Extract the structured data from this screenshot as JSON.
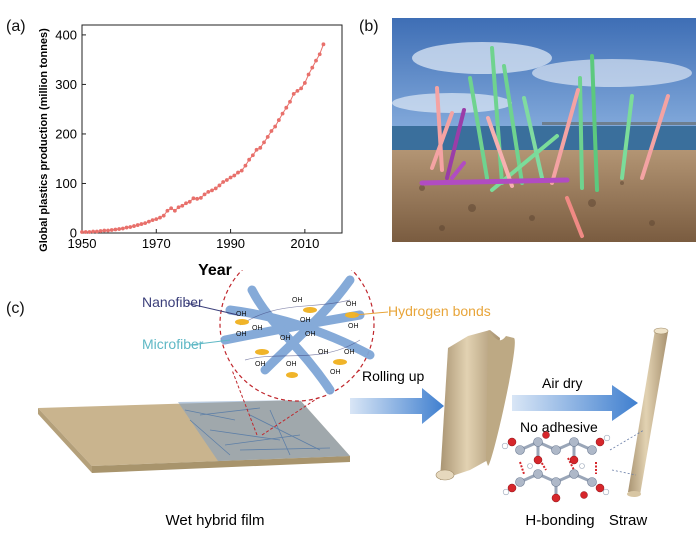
{
  "panels": {
    "a": "(a)",
    "b": "(b)",
    "c": "(c)"
  },
  "chart_data": {
    "type": "line",
    "xlabel": "Year",
    "ylabel": "Global plastics production (million tonnes)",
    "xlim": [
      1950,
      2020
    ],
    "ylim": [
      0,
      420
    ],
    "xticks": [
      "1950",
      "1970",
      "1990",
      "2010"
    ],
    "yticks": [
      "0",
      "100",
      "200",
      "300",
      "400"
    ],
    "grid": false,
    "color": "#e8706b",
    "x": [
      1950,
      1951,
      1952,
      1953,
      1954,
      1955,
      1956,
      1957,
      1958,
      1959,
      1960,
      1961,
      1962,
      1963,
      1964,
      1965,
      1966,
      1967,
      1968,
      1969,
      1970,
      1971,
      1972,
      1973,
      1974,
      1975,
      1976,
      1977,
      1978,
      1979,
      1980,
      1981,
      1982,
      1983,
      1984,
      1985,
      1986,
      1987,
      1988,
      1989,
      1990,
      1991,
      1992,
      1993,
      1994,
      1995,
      1996,
      1997,
      1998,
      1999,
      2000,
      2001,
      2002,
      2003,
      2004,
      2005,
      2006,
      2007,
      2008,
      2009,
      2010,
      2011,
      2012,
      2013,
      2014,
      2015
    ],
    "y": [
      2,
      2,
      2,
      3,
      3,
      4,
      5,
      5,
      6,
      7,
      8,
      9,
      11,
      12,
      14,
      16,
      18,
      20,
      23,
      26,
      28,
      31,
      35,
      45,
      50,
      45,
      52,
      55,
      60,
      63,
      70,
      69,
      71,
      78,
      83,
      86,
      90,
      96,
      103,
      107,
      112,
      116,
      122,
      126,
      136,
      148,
      157,
      168,
      172,
      183,
      194,
      206,
      215,
      228,
      241,
      253,
      265,
      281,
      287,
      292,
      303,
      320,
      334,
      348,
      361,
      381
    ]
  },
  "photo": {
    "sky_color": "#5e88c6",
    "sand_color": "#9c7d5e",
    "sea_color": "#3a6f9c"
  },
  "schematic": {
    "nanofiber_label": "Nanofiber",
    "microfiber_label": "Microfiber",
    "hydrogen_label": "Hydrogen bonds",
    "oh": "OH",
    "rolling_label": "Rolling up",
    "airdry_label": "Air dry",
    "noadhesive_label": "No adhesive",
    "film_label": "Wet hybrid film",
    "hbond_label": "H-bonding",
    "straw_label": "Straw",
    "nanofiber_color": "#3b3f7a",
    "microfiber_color": "#5fb8c5",
    "hydrogen_color": "#e8a53a",
    "film_color": "#c9b48e",
    "fiber_color": "#7fa6d6"
  }
}
